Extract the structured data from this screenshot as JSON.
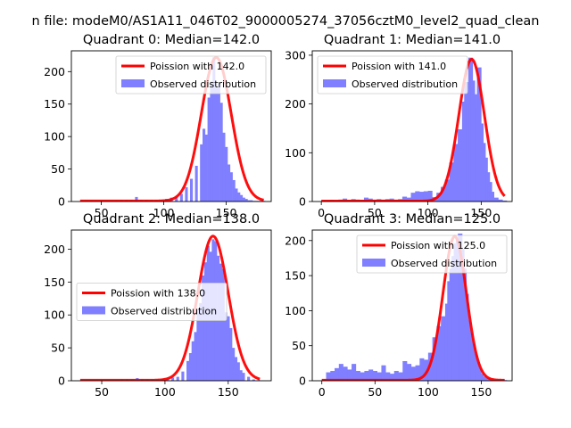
{
  "figure": {
    "suptitle": "n file: modeM0/AS1A11_046T02_9000005274_37056cztM0_level2_quad_clean"
  },
  "chart_data": [
    {
      "type": "bar",
      "title": "Quadrant 0: Median=142.0",
      "xlim": [
        26,
        186
      ],
      "ylim": [
        0,
        232
      ],
      "xticks": [
        50,
        100,
        150
      ],
      "yticks": [
        0,
        50,
        100,
        150,
        200
      ],
      "legend": {
        "placement": "top-right",
        "entries": [
          "Poission with 142.0",
          "Observed distribution"
        ]
      },
      "median": 142.0,
      "peak": 221,
      "sigma": 12,
      "curve_range": [
        33,
        180
      ],
      "hist": {
        "x": [
          34,
          38,
          42,
          46,
          50,
          54,
          58,
          62,
          66,
          70,
          74,
          78,
          82,
          86,
          90,
          94,
          98,
          102,
          106,
          110,
          114,
          118,
          122,
          126,
          130,
          132,
          134,
          136,
          138,
          140,
          142,
          144,
          146,
          148,
          150,
          152,
          154,
          156,
          158,
          160,
          162,
          164,
          166,
          168,
          170,
          172,
          174,
          176,
          178,
          180
        ],
        "values": [
          1,
          1,
          1,
          1,
          1,
          1,
          1,
          1,
          2,
          2,
          2,
          7,
          2,
          2,
          2,
          2,
          2,
          4,
          6,
          7,
          12,
          22,
          35,
          55,
          88,
          112,
          103,
          160,
          185,
          222,
          175,
          182,
          152,
          106,
          84,
          57,
          45,
          33,
          20,
          14,
          10,
          6,
          4,
          2,
          2,
          1,
          1,
          1,
          1,
          1
        ],
        "bin_width": 2
      },
      "series_color": "#ff0000",
      "hist_color": "#7f7fff"
    },
    {
      "type": "bar",
      "title": "Quadrant 1: Median=141.0",
      "xlim": [
        -8.5,
        179
      ],
      "ylim": [
        0,
        309
      ],
      "xticks": [
        0,
        50,
        100,
        150
      ],
      "yticks": [
        0,
        100,
        200,
        300
      ],
      "legend": {
        "placement": "top-left",
        "entries": [
          "Poission with 141.0",
          "Observed distribution"
        ]
      },
      "median": 141.0,
      "peak": 291,
      "sigma": 12,
      "curve_range": [
        0,
        172
      ],
      "hist": {
        "x": [
          2,
          6,
          10,
          14,
          18,
          22,
          26,
          30,
          34,
          38,
          42,
          46,
          50,
          54,
          58,
          62,
          66,
          70,
          74,
          78,
          82,
          86,
          90,
          94,
          98,
          102,
          106,
          110,
          114,
          118,
          122,
          126,
          130,
          134,
          136,
          138,
          140,
          142,
          144,
          146,
          148,
          150,
          152,
          154,
          156,
          158,
          160,
          164,
          168,
          172
        ],
        "values": [
          2,
          2,
          3,
          2,
          4,
          6,
          3,
          5,
          4,
          3,
          8,
          6,
          4,
          5,
          4,
          5,
          6,
          4,
          5,
          10,
          8,
          18,
          21,
          20,
          21,
          22,
          9,
          18,
          30,
          45,
          80,
          118,
          148,
          205,
          245,
          200,
          295,
          248,
          220,
          190,
          275,
          160,
          120,
          90,
          60,
          40,
          20,
          8,
          4,
          2
        ],
        "bin_width": 4
      },
      "series_color": "#ff0000",
      "hist_color": "#7f7fff"
    },
    {
      "type": "bar",
      "title": "Quadrant 2: Median=138.0",
      "xlim": [
        26,
        184
      ],
      "ylim": [
        0,
        229
      ],
      "xticks": [
        50,
        100,
        150
      ],
      "yticks": [
        0,
        50,
        100,
        150,
        200
      ],
      "legend": {
        "placement": "center-left",
        "entries": [
          "Poission with 138.0",
          "Observed distribution"
        ]
      },
      "median": 138.0,
      "peak": 219,
      "sigma": 12,
      "curve_range": [
        33,
        175
      ],
      "hist": {
        "x": [
          34,
          38,
          42,
          46,
          50,
          54,
          58,
          62,
          66,
          70,
          74,
          78,
          82,
          86,
          90,
          94,
          98,
          102,
          106,
          110,
          114,
          118,
          120,
          122,
          124,
          126,
          128,
          130,
          132,
          134,
          136,
          138,
          140,
          142,
          144,
          146,
          148,
          150,
          152,
          154,
          156,
          158,
          160,
          162,
          166,
          170,
          174
        ],
        "values": [
          1,
          1,
          1,
          1,
          1,
          1,
          1,
          1,
          2,
          2,
          2,
          4,
          2,
          2,
          2,
          2,
          3,
          3,
          5,
          6,
          14,
          30,
          42,
          60,
          74,
          110,
          118,
          160,
          180,
          205,
          196,
          215,
          212,
          190,
          178,
          170,
          104,
          98,
          80,
          50,
          36,
          28,
          16,
          12,
          6,
          2,
          1
        ],
        "bin_width": 2
      },
      "series_color": "#ff0000",
      "hist_color": "#7f7fff"
    },
    {
      "type": "bar",
      "title": "Quadrant 3: Median=125.0",
      "xlim": [
        -9,
        179
      ],
      "ylim": [
        0,
        215
      ],
      "xticks": [
        0,
        50,
        100,
        150
      ],
      "yticks": [
        0,
        50,
        100,
        150,
        200
      ],
      "legend": {
        "placement": "top-right",
        "entries": [
          "Poission with 125.0",
          "Observed distribution"
        ]
      },
      "median": 125.0,
      "peak": 205,
      "sigma": 11,
      "curve_range": [
        0,
        172
      ],
      "hist": {
        "x": [
          2,
          6,
          10,
          14,
          18,
          22,
          26,
          30,
          34,
          38,
          42,
          46,
          50,
          54,
          58,
          62,
          66,
          70,
          74,
          78,
          82,
          86,
          90,
          94,
          98,
          102,
          106,
          110,
          114,
          118,
          120,
          122,
          124,
          126,
          128,
          130,
          132,
          134,
          136,
          138,
          140,
          142,
          144,
          146,
          148,
          150,
          152,
          156,
          160,
          164,
          168,
          172
        ],
        "values": [
          2,
          12,
          14,
          18,
          24,
          20,
          16,
          24,
          14,
          12,
          14,
          16,
          14,
          12,
          22,
          12,
          10,
          14,
          12,
          28,
          24,
          20,
          22,
          32,
          30,
          40,
          62,
          78,
          92,
          110,
          142,
          160,
          178,
          196,
          200,
          210,
          188,
          160,
          124,
          86,
          68,
          52,
          38,
          26,
          18,
          10,
          6,
          4,
          2,
          1,
          1,
          1
        ],
        "bin_width": 4
      },
      "series_color": "#ff0000",
      "hist_color": "#7f7fff"
    }
  ]
}
